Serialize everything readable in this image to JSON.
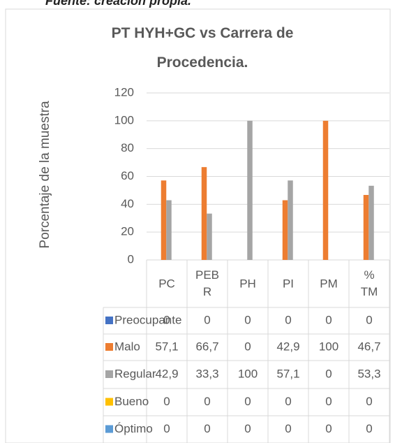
{
  "source_note": "Fuente: creación propia.",
  "chart_data": {
    "type": "bar",
    "title": "PT HYH+GC vs Carrera de Procedencia.",
    "y_label": "Porcentaje de la muestra",
    "categories": [
      "PC",
      "PEBR",
      "PH",
      "PI",
      "PM",
      "%TM"
    ],
    "ylim": [
      0,
      120
    ],
    "yticks": [
      0,
      20,
      40,
      60,
      80,
      100,
      120
    ],
    "grid": true,
    "series": [
      {
        "name": "Preocupante",
        "color": "#4472c4",
        "values": [
          0,
          0,
          0,
          0,
          0,
          0
        ],
        "value_labels": [
          "0",
          "0",
          "0",
          "0",
          "0",
          "0"
        ]
      },
      {
        "name": "Malo",
        "color": "#ed7d31",
        "values": [
          57.1,
          66.7,
          0,
          42.9,
          100,
          46.7
        ],
        "value_labels": [
          "57,1",
          "66,7",
          "0",
          "42,9",
          "100",
          "46,7"
        ]
      },
      {
        "name": "Regular",
        "color": "#a5a5a5",
        "values": [
          42.9,
          33.3,
          100,
          57.1,
          0,
          53.3
        ],
        "value_labels": [
          "42,9",
          "33,3",
          "100",
          "57,1",
          "0",
          "53,3"
        ]
      },
      {
        "name": "Bueno",
        "color": "#ffc000",
        "values": [
          0,
          0,
          0,
          0,
          0,
          0
        ],
        "value_labels": [
          "0",
          "0",
          "0",
          "0",
          "0",
          "0"
        ]
      },
      {
        "name": "Óptimo",
        "color": "#5b9bd5",
        "values": [
          0,
          0,
          0,
          0,
          0,
          0
        ],
        "value_labels": [
          "0",
          "0",
          "0",
          "0",
          "0",
          "0"
        ]
      }
    ]
  }
}
